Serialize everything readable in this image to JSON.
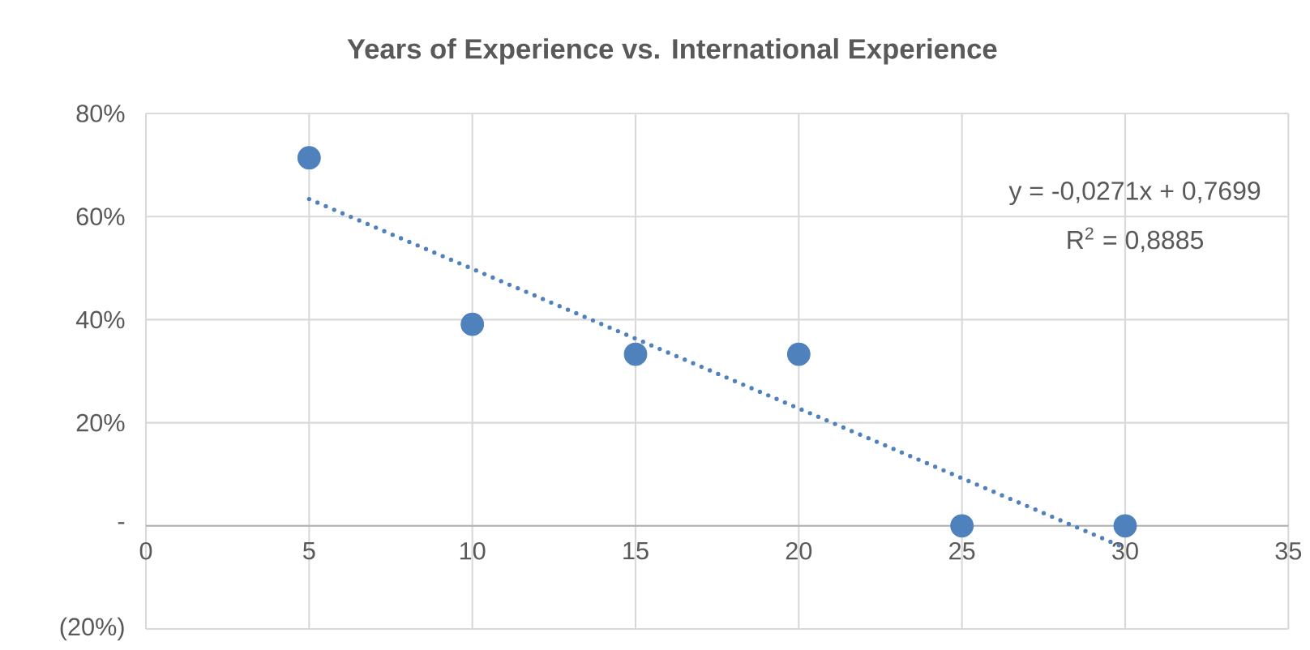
{
  "chart_data": {
    "type": "scatter",
    "title": "Years of Experience vs. International Experience",
    "x": [
      5,
      10,
      15,
      20,
      25,
      30
    ],
    "series": [
      {
        "color": "#4f81bd",
        "marker": "circle",
        "values": [
          71.4,
          39.1,
          33.3,
          33.3,
          0,
          0
        ]
      },
      {
        "type": "line",
        "color": "#4f81bd",
        "line_style": "dotted",
        "marker": "none",
        "x": [
          5,
          30
        ],
        "values": [
          63.4,
          -4.3
        ]
      }
    ],
    "xlim": [
      0,
      35
    ],
    "xticks": [
      0,
      5,
      10,
      15,
      20,
      25,
      30,
      35
    ],
    "ylim": [
      -20,
      80
    ],
    "yticks": [
      {
        "value": -20,
        "label": "(20%)"
      },
      {
        "value": 0,
        "label": "-"
      },
      {
        "value": 20,
        "label": "20%"
      },
      {
        "value": 40,
        "label": "40%"
      },
      {
        "value": 60,
        "label": "60%"
      },
      {
        "value": 80,
        "label": "80%"
      }
    ],
    "grid": true,
    "annotations": [
      "y = -0,0271x + 0,7699",
      "R$^{2}$ = 0,8885"
    ]
  }
}
